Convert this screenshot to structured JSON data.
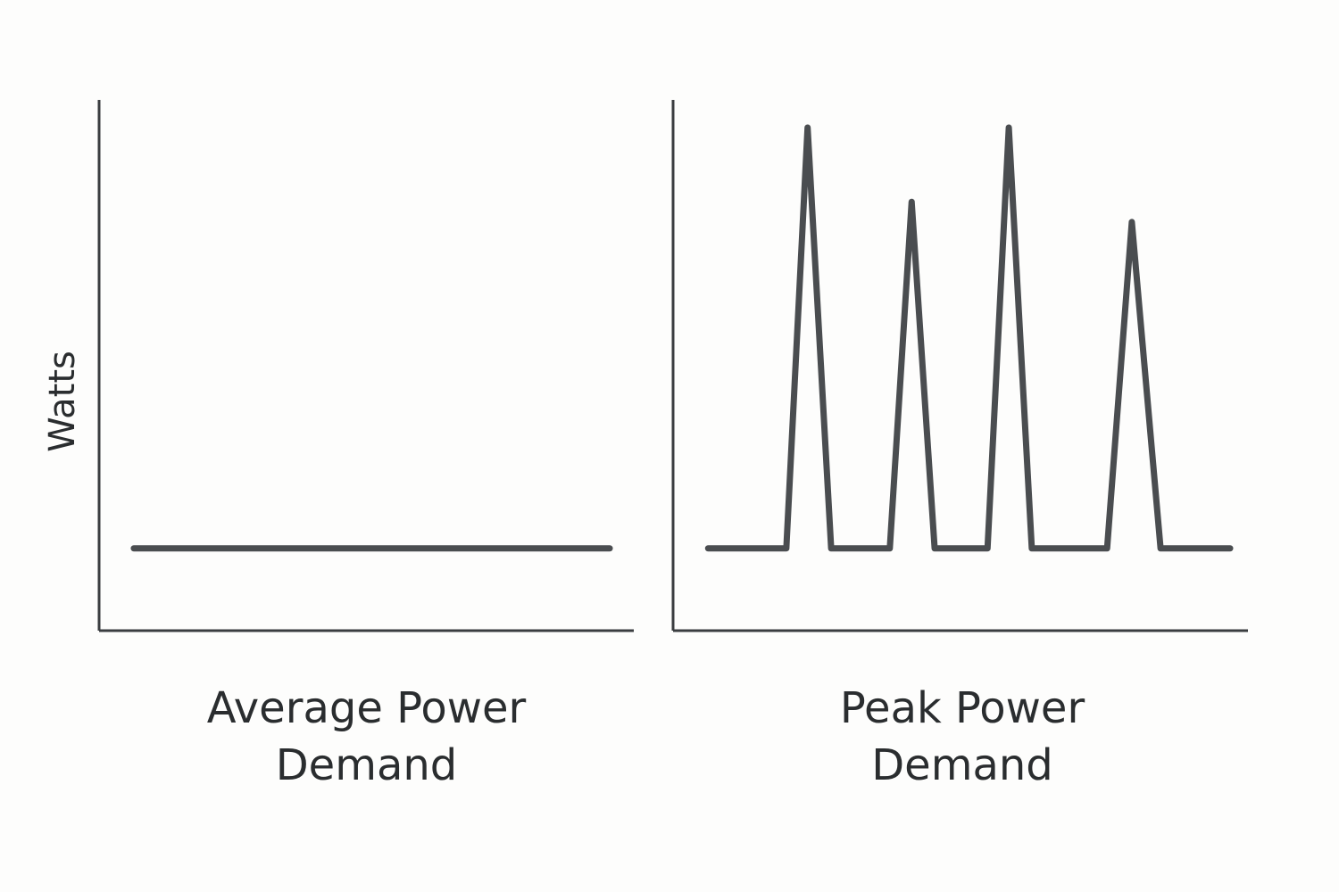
{
  "chart_data": [
    {
      "type": "line",
      "x_label": "Average Power Demand",
      "y_label": "Watts",
      "x": [
        6.5,
        95.5
      ],
      "values": [
        15.5,
        15.5
      ],
      "xlim": [
        0,
        100
      ],
      "ylim": [
        0,
        100
      ],
      "color": "#4a4d50"
    },
    {
      "type": "line",
      "x_label": "Peak Power Demand",
      "x": [
        6.1,
        19.7,
        23.4,
        27.5,
        37.7,
        41.5,
        45.5,
        54.7,
        58.4,
        62.4,
        75.5,
        79.8,
        84.8,
        96.9
      ],
      "values": [
        15.5,
        15.5,
        94.8,
        15.5,
        15.5,
        80.8,
        15.5,
        15.5,
        94.8,
        15.5,
        15.5,
        77.0,
        15.5,
        15.5
      ],
      "xlim": [
        0,
        100
      ],
      "ylim": [
        0,
        100
      ],
      "color": "#4a4d50"
    }
  ]
}
